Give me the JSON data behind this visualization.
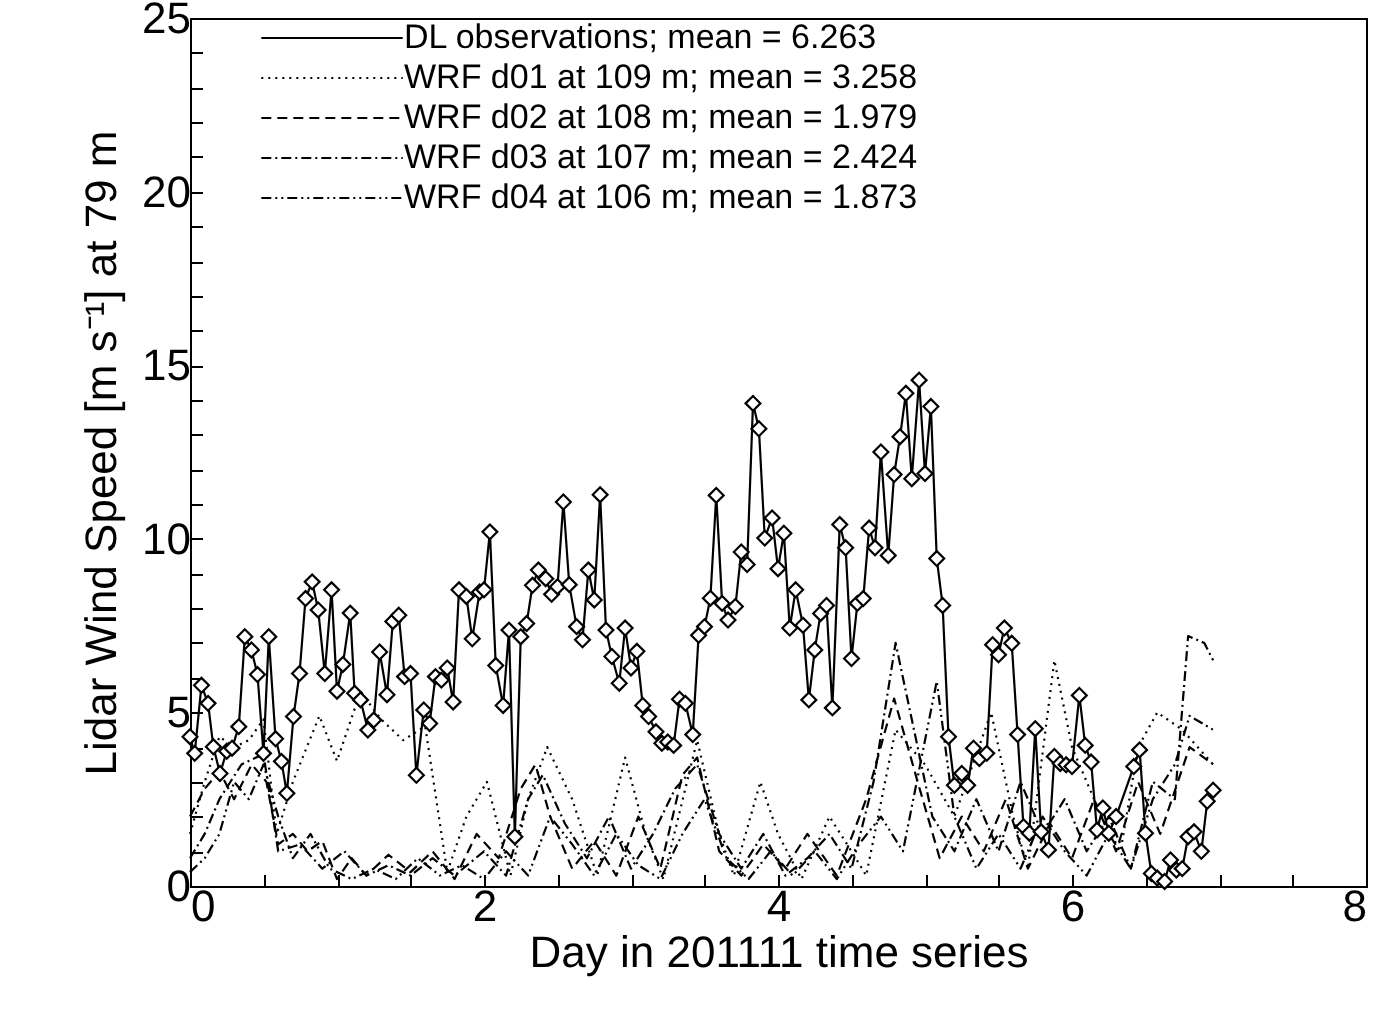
{
  "chart_data": {
    "type": "line",
    "xlabel": "Day in 201111 time series",
    "ylabel": "Lidar Wind Speed [m s⁻¹] at 79 m",
    "xlim": [
      0,
      8
    ],
    "ylim": [
      0,
      25
    ],
    "xticks": [
      0,
      {
        "value": 0.5,
        "label": null
      },
      {
        "value": 1,
        "label": null
      },
      {
        "value": 1.5,
        "label": null
      },
      2,
      {
        "value": 2.5,
        "label": null
      },
      {
        "value": 3,
        "label": null
      },
      {
        "value": 3.5,
        "label": null
      },
      4,
      {
        "value": 4.5,
        "label": null
      },
      {
        "value": 5,
        "label": null
      },
      {
        "value": 5.5,
        "label": null
      },
      6,
      {
        "value": 6.5,
        "label": null
      },
      {
        "value": 7,
        "label": null
      },
      {
        "value": 7.5,
        "label": null
      },
      8
    ],
    "yticks": [
      0,
      {
        "value": 1,
        "label": null
      },
      {
        "value": 2,
        "label": null
      },
      {
        "value": 3,
        "label": null
      },
      {
        "value": 4,
        "label": null
      },
      5,
      {
        "value": 6,
        "label": null
      },
      {
        "value": 7,
        "label": null
      },
      {
        "value": 8,
        "label": null
      },
      {
        "value": 9,
        "label": null
      },
      10,
      {
        "value": 11,
        "label": null
      },
      {
        "value": 12,
        "label": null
      },
      {
        "value": 13,
        "label": null
      },
      {
        "value": 14,
        "label": null
      },
      15,
      {
        "value": 16,
        "label": null
      },
      {
        "value": 17,
        "label": null
      },
      {
        "value": 18,
        "label": null
      },
      {
        "value": 19,
        "label": null
      },
      20,
      {
        "value": 21,
        "label": null
      },
      {
        "value": 22,
        "label": null
      },
      {
        "value": 23,
        "label": null
      },
      {
        "value": 24,
        "label": null
      },
      25
    ],
    "grid": false,
    "legend": "top left",
    "series": [
      {
        "name": "DL observations; mean = 6.263",
        "color": "#000000",
        "line_style": "solid",
        "marker": "diamond",
        "x": [
          0,
          0.032,
          0.078,
          0.123,
          0.159,
          0.204,
          0.25,
          0.286,
          0.332,
          0.373,
          0.418,
          0.459,
          0.5,
          0.536,
          0.582,
          0.622,
          0.659,
          0.704,
          0.745,
          0.786,
          0.831,
          0.872,
          0.917,
          0.963,
          1.0,
          1.04,
          1.09,
          1.12,
          1.16,
          1.21,
          1.25,
          1.29,
          1.34,
          1.38,
          1.42,
          1.46,
          1.5,
          1.54,
          1.59,
          1.63,
          1.67,
          1.71,
          1.75,
          1.79,
          1.83,
          1.88,
          1.92,
          1.97,
          2.0,
          2.04,
          2.08,
          2.13,
          2.17,
          2.21,
          2.25,
          2.29,
          2.33,
          2.37,
          2.42,
          2.46,
          2.5,
          2.54,
          2.58,
          2.63,
          2.67,
          2.71,
          2.75,
          2.79,
          2.83,
          2.87,
          2.92,
          2.96,
          3.0,
          3.04,
          3.08,
          3.12,
          3.17,
          3.21,
          3.25,
          3.29,
          3.33,
          3.37,
          3.42,
          3.46,
          3.5,
          3.54,
          3.58,
          3.62,
          3.66,
          3.71,
          3.75,
          3.79,
          3.83,
          3.87,
          3.91,
          3.96,
          4.0,
          4.04,
          4.08,
          4.12,
          4.17,
          4.21,
          4.25,
          4.29,
          4.33,
          4.37,
          4.42,
          4.46,
          4.5,
          4.54,
          4.58,
          4.62,
          4.66,
          4.7,
          4.75,
          4.79,
          4.83,
          4.87,
          4.91,
          4.96,
          5.0,
          5.04,
          5.08,
          5.12,
          5.16,
          5.2,
          5.25,
          5.29,
          5.33,
          5.37,
          5.42,
          5.46,
          5.5,
          5.54,
          5.59,
          5.63,
          5.67,
          5.71,
          5.75,
          5.79,
          5.84,
          5.88,
          5.92,
          5.96,
          6.0,
          6.05,
          6.09,
          6.13,
          6.17,
          6.21,
          6.25,
          6.3,
          6.42,
          6.46,
          6.5,
          6.54,
          6.58,
          6.63,
          6.67,
          6.71,
          6.75,
          6.79,
          6.83,
          6.88,
          6.92,
          6.96
        ],
        "values": [
          4.3,
          3.82,
          5.78,
          5.26,
          4.01,
          3.24,
          3.88,
          3.97,
          4.59,
          7.18,
          6.8,
          6.09,
          3.82,
          7.18,
          4.24,
          3.59,
          2.67,
          4.88,
          6.12,
          8.28,
          8.76,
          7.95,
          6.12,
          8.53,
          5.61,
          6.38,
          7.86,
          5.55,
          5.36,
          4.49,
          4.78,
          6.74,
          5.51,
          7.62,
          7.8,
          6.03,
          6.12,
          3.19,
          5.07,
          4.68,
          6.03,
          5.93,
          6.28,
          5.3,
          8.53,
          8.34,
          7.12,
          8.47,
          8.53,
          10.2,
          6.35,
          5.2,
          7.37,
          1.42,
          7.18,
          7.56,
          8.66,
          9.1,
          8.85,
          8.4,
          8.62,
          11.06,
          8.68,
          7.47,
          7.09,
          9.1,
          8.24,
          11.27,
          7.37,
          6.61,
          5.84,
          7.43,
          6.28,
          6.76,
          5.2,
          4.88,
          4.44,
          4.11,
          4.15,
          4.05,
          5.38,
          5.26,
          4.36,
          7.22,
          7.47,
          8.29,
          11.25,
          8.14,
          7.66,
          8.05,
          9.62,
          9.26,
          13.9,
          13.17,
          10.02,
          10.6,
          9.14,
          10.16,
          7.43,
          8.53,
          7.51,
          5.36,
          6.8,
          7.85,
          8.08,
          5.13,
          10.41,
          9.74,
          6.55,
          8.14,
          8.28,
          10.31,
          9.74,
          12.5,
          9.52,
          11.85,
          12.94,
          14.19,
          11.73,
          14.57,
          11.88,
          13.81,
          9.43,
          8.08,
          4.3,
          2.9,
          3.24,
          2.9,
          3.97,
          3.67,
          3.82,
          6.95,
          6.66,
          7.43,
          6.99,
          4.36,
          1.71,
          1.52,
          4.53,
          1.56,
          1.04,
          3.73,
          3.53,
          3.49,
          3.44,
          5.49,
          4.05,
          3.57,
          1.61,
          2.25,
          1.52,
          2.0,
          3.44,
          3.92,
          1.52,
          0.36,
          0.23,
          0.13,
          0.75,
          0.46,
          0.5,
          1.42,
          1.56,
          1.0,
          2.44,
          2.76
        ]
      },
      {
        "name": "WRF d01 at 109 m; mean = 3.258",
        "color": "#000000",
        "line_style": "dotted",
        "marker": "none",
        "x": [
          0,
          0.1,
          0.2,
          0.3,
          0.4,
          0.5,
          0.59,
          0.7,
          0.88,
          1.0,
          1.16,
          1.3,
          1.45,
          1.6,
          1.75,
          1.88,
          2.02,
          2.18,
          2.3,
          2.43,
          2.6,
          2.77,
          2.96,
          3.1,
          3.22,
          3.45,
          3.6,
          3.7,
          3.88,
          4.0,
          4.16,
          4.35,
          4.5,
          4.6,
          4.8,
          5.0,
          5.2,
          5.45,
          5.6,
          5.7,
          5.88,
          6.0,
          6.2,
          6.33,
          6.45,
          6.58,
          6.75,
          6.96
        ],
        "values": [
          1.5,
          3.0,
          4.3,
          4.0,
          4.2,
          4.8,
          1.5,
          3.0,
          4.9,
          3.6,
          5.6,
          4.8,
          4.2,
          4.6,
          0.4,
          2.0,
          3.0,
          0.3,
          2.5,
          4.0,
          2.5,
          0.3,
          3.7,
          1.5,
          0.2,
          4.2,
          1.5,
          0.3,
          3.0,
          1.5,
          0.2,
          2.0,
          1.0,
          0.3,
          4.5,
          3.5,
          2.0,
          5.0,
          2.0,
          0.5,
          6.5,
          4.0,
          2.0,
          1.0,
          4.0,
          5.0,
          4.5,
          3.5
        ]
      },
      {
        "name": "WRF d02 at 108 m; mean = 1.979",
        "color": "#000000",
        "line_style": "dashed",
        "marker": "none",
        "x": [
          0,
          0.1,
          0.2,
          0.3,
          0.42,
          0.52,
          0.6,
          0.7,
          0.8,
          0.9,
          1.0,
          1.1,
          1.2,
          1.35,
          1.5,
          1.65,
          1.8,
          1.95,
          2.1,
          2.25,
          2.35,
          2.45,
          2.6,
          2.75,
          2.9,
          3.05,
          3.2,
          3.35,
          3.45,
          3.6,
          3.75,
          3.9,
          4.05,
          4.2,
          4.4,
          4.6,
          4.79,
          4.95,
          5.1,
          5.25,
          5.4,
          5.55,
          5.7,
          5.85,
          6.0,
          6.15,
          6.3,
          6.45,
          6.6,
          6.8,
          6.96
        ],
        "values": [
          2.0,
          2.8,
          3.3,
          2.5,
          3.5,
          3.0,
          1.2,
          1.5,
          1.0,
          1.3,
          0.2,
          0.8,
          0.3,
          0.9,
          0.4,
          1.0,
          0.2,
          1.5,
          0.8,
          2.8,
          3.5,
          2.0,
          0.5,
          1.3,
          0.3,
          2.0,
          0.5,
          3.2,
          3.7,
          1.0,
          0.3,
          1.2,
          0.5,
          1.5,
          0.3,
          2.5,
          5.4,
          3.0,
          0.8,
          2.0,
          1.0,
          2.5,
          0.5,
          1.8,
          0.8,
          2.5,
          1.0,
          3.0,
          1.5,
          4.0,
          3.5
        ]
      },
      {
        "name": "WRF d03 at 107 m; mean = 2.424",
        "color": "#000000",
        "line_style": "dashdot",
        "marker": "none",
        "x": [
          0,
          0.1,
          0.2,
          0.35,
          0.5,
          0.6,
          0.75,
          0.9,
          1.05,
          1.2,
          1.35,
          1.5,
          1.65,
          1.8,
          2.0,
          2.15,
          2.3,
          2.4,
          2.55,
          2.7,
          2.85,
          3.0,
          3.15,
          3.3,
          3.45,
          3.6,
          3.75,
          3.9,
          4.05,
          4.2,
          4.35,
          4.5,
          4.65,
          4.8,
          4.95,
          5.05,
          5.2,
          5.35,
          5.5,
          5.65,
          5.8,
          5.95,
          6.1,
          6.25,
          6.4,
          6.55,
          6.7,
          6.79,
          6.9,
          6.96
        ],
        "values": [
          0.8,
          1.5,
          2.5,
          3.5,
          3.8,
          1.0,
          1.2,
          0.5,
          1.0,
          0.3,
          0.6,
          0.3,
          0.8,
          0.3,
          1.0,
          0.3,
          2.5,
          3.2,
          1.8,
          0.8,
          2.0,
          0.5,
          1.5,
          2.8,
          3.5,
          1.5,
          0.5,
          1.5,
          0.3,
          0.8,
          1.5,
          0.5,
          3.0,
          7.0,
          4.0,
          2.0,
          1.0,
          2.5,
          1.0,
          3.0,
          1.5,
          2.5,
          1.0,
          2.0,
          0.5,
          3.0,
          2.5,
          7.2,
          7.0,
          6.5
        ]
      },
      {
        "name": "WRF d04 at 106 m; mean = 1.873",
        "color": "#000000",
        "line_style": "dashdotdot",
        "marker": "none",
        "x": [
          0,
          0.1,
          0.2,
          0.3,
          0.4,
          0.5,
          0.6,
          0.7,
          0.82,
          0.95,
          1.1,
          1.25,
          1.4,
          1.55,
          1.7,
          1.85,
          2.0,
          2.15,
          2.3,
          2.45,
          2.6,
          2.75,
          2.9,
          3.05,
          3.2,
          3.35,
          3.5,
          3.65,
          3.8,
          3.95,
          4.1,
          4.25,
          4.4,
          4.55,
          4.7,
          4.85,
          5.08,
          5.2,
          5.35,
          5.5,
          5.65,
          5.8,
          5.95,
          6.1,
          6.25,
          6.4,
          6.55,
          6.7,
          6.8,
          6.96
        ],
        "values": [
          0.4,
          0.8,
          1.5,
          3.0,
          2.5,
          3.5,
          2.0,
          0.8,
          1.5,
          0.5,
          0.2,
          0.5,
          0.2,
          0.8,
          0.3,
          0.6,
          0.2,
          1.0,
          0.3,
          2.0,
          1.2,
          0.3,
          1.5,
          0.6,
          0.2,
          1.5,
          2.5,
          0.8,
          0.2,
          1.0,
          0.3,
          1.0,
          0.2,
          1.2,
          2.0,
          1.0,
          5.9,
          2.0,
          0.5,
          1.5,
          0.5,
          2.0,
          1.0,
          0.3,
          1.5,
          0.5,
          2.5,
          3.5,
          4.9,
          4.5
        ]
      }
    ]
  }
}
